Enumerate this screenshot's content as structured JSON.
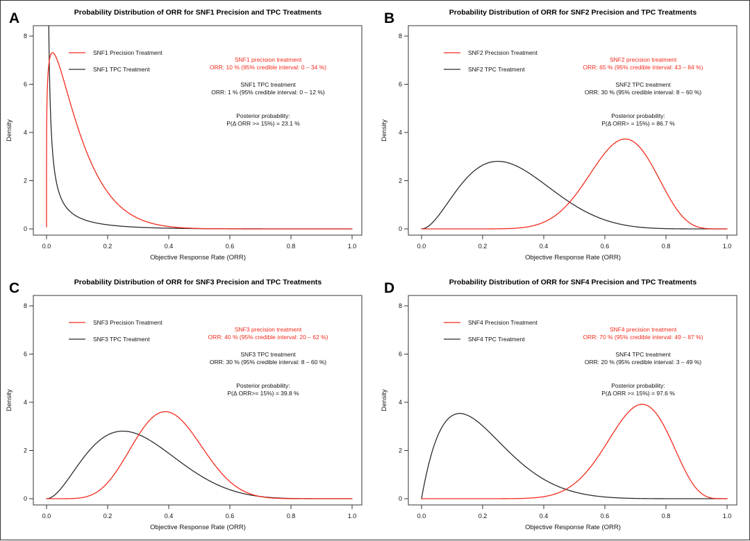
{
  "figure": {
    "background": "#ffffff",
    "border_color": "#333333",
    "description": "2x2 grid of posterior density plots comparing Precision vs TPC treatment ORR for subgroups SNF1-SNF4"
  },
  "colors": {
    "precision": "#f42a1d",
    "tpc": "#2b2b2b",
    "axis": "#333333",
    "text": "#111111"
  },
  "axes": {
    "x_label": "Objective Response Rate (ORR)",
    "y_label": "Density",
    "x_ticks": [
      "0.0",
      "0.2",
      "0.4",
      "0.6",
      "0.8",
      "1.0"
    ],
    "x_tick_values": [
      0,
      0.2,
      0.4,
      0.6,
      0.8,
      1.0
    ],
    "y_ticks": [
      "0",
      "2",
      "4",
      "6",
      "8"
    ],
    "y_tick_values": [
      0,
      2,
      4,
      6,
      8
    ],
    "x_range": [
      0,
      1
    ],
    "y_range": [
      0,
      8.4
    ],
    "grid": false
  },
  "chart_data": [
    {
      "type": "line",
      "panel_label": "A",
      "title": "Probability Distribution of ORR for SNF1 Precision and TPC Treatments",
      "legend_position": "top-left-inside",
      "legend": [
        {
          "label": "SNF1 Precision Treatment",
          "color": "#f42a1d"
        },
        {
          "label": "SNF1 TPC Treatment",
          "color": "#2b2b2b"
        }
      ],
      "series": [
        {
          "name": "SNF1 Precision Treatment",
          "color": "#f42a1d",
          "orr_pct": 10,
          "ci95_pct": [
            0,
            34
          ],
          "peak": {
            "x": 0.02,
            "y": 7.65
          },
          "beta_fit": {
            "alpha": 1.2,
            "beta": 11
          }
        },
        {
          "name": "SNF1 TPC Treatment",
          "color": "#2b2b2b",
          "orr_pct": 1,
          "ci95_pct": [
            0,
            12
          ],
          "peak": {
            "x": 0.005,
            "y": 8.4,
            "clipped_at_plot_top": true
          },
          "beta_fit": {
            "alpha": 0.08,
            "beta": 5
          }
        }
      ],
      "annotations": {
        "precision": [
          "SNF1 precision treatment",
          "ORR: 10 % (95% credible interval: 0 – 34 %)"
        ],
        "tpc": [
          "SNF1 TPC treatment",
          "ORR: 1 % (95% credible interval: 0 – 12 %)"
        ],
        "posterior": [
          "Posterior probability:",
          "P(Δ ORR >= 15%) =  23.1 %"
        ],
        "posterior_probability_pct": 23.1
      }
    },
    {
      "type": "line",
      "panel_label": "B",
      "title": "Probability Distribution of ORR for SNF2 Precision and TPC Treatments",
      "legend_position": "top-left-inside",
      "legend": [
        {
          "label": "SNF2 Precision Treatment",
          "color": "#f42a1d"
        },
        {
          "label": "SNF2 TPC Treatment",
          "color": "#2b2b2b"
        }
      ],
      "series": [
        {
          "name": "SNF2 Precision Treatment",
          "color": "#f42a1d",
          "orr_pct": 65,
          "ci95_pct": [
            43,
            84
          ],
          "peak": {
            "x": 0.67,
            "y": 3.75
          },
          "beta_fit": {
            "alpha": 13,
            "beta": 7
          }
        },
        {
          "name": "SNF2 TPC Treatment",
          "color": "#2b2b2b",
          "orr_pct": 30,
          "ci95_pct": [
            8,
            60
          ],
          "peak": {
            "x": 0.25,
            "y": 2.8
          },
          "beta_fit": {
            "alpha": 3,
            "beta": 7
          }
        }
      ],
      "annotations": {
        "precision": [
          "SNF2 precision treatment",
          "ORR: 65 % (95% credible interval: 43 – 84 %)"
        ],
        "tpc": [
          "SNF2 TPC treatment",
          "ORR: 30 % (95% credible interval: 8 – 60 %)"
        ],
        "posterior": [
          "Posterior probability:",
          "P(Δ ORR> = 15%) =  86.7 %"
        ],
        "posterior_probability_pct": 86.7
      }
    },
    {
      "type": "line",
      "panel_label": "C",
      "title": "Probability Distribution of ORR for SNF3 Precision and TPC Treatments",
      "legend_position": "top-left-inside",
      "legend": [
        {
          "label": "SNF3 Precision Treatment",
          "color": "#f42a1d"
        },
        {
          "label": "SNF3 TPC Treatment",
          "color": "#2b2b2b"
        }
      ],
      "series": [
        {
          "name": "SNF3 Precision Treatment",
          "color": "#f42a1d",
          "orr_pct": 40,
          "ci95_pct": [
            20,
            62
          ],
          "peak": {
            "x": 0.39,
            "y": 3.6
          },
          "beta_fit": {
            "alpha": 8,
            "beta": 12
          }
        },
        {
          "name": "SNF3 TPC Treatment",
          "color": "#2b2b2b",
          "orr_pct": 30,
          "ci95_pct": [
            8,
            60
          ],
          "peak": {
            "x": 0.25,
            "y": 2.8
          },
          "beta_fit": {
            "alpha": 3,
            "beta": 7
          }
        }
      ],
      "annotations": {
        "precision": [
          "SNF3 precision treatment",
          "ORR: 40 % (95% credible interval: 20 – 62 %)"
        ],
        "tpc": [
          "SNF3 TPC treatment",
          "ORR: 30 % (95% credible interval: 8 – 60 %)"
        ],
        "posterior": [
          "Posterior probability:",
          "P(Δ ORR>= 15%) =  39.8 %"
        ],
        "posterior_probability_pct": 39.8
      }
    },
    {
      "type": "line",
      "panel_label": "D",
      "title": "Probability Distribution of ORR for SNF4 Precision and TPC Treatments",
      "legend_position": "top-left-inside",
      "legend": [
        {
          "label": "SNF4 Precision Treatment",
          "color": "#f42a1d"
        },
        {
          "label": "SNF4 TPC Treatment",
          "color": "#2b2b2b"
        }
      ],
      "series": [
        {
          "name": "SNF4 Precision Treatment",
          "color": "#f42a1d",
          "orr_pct": 70,
          "ci95_pct": [
            49,
            87
          ],
          "peak": {
            "x": 0.72,
            "y": 3.9
          },
          "beta_fit": {
            "alpha": 14,
            "beta": 6
          }
        },
        {
          "name": "SNF4 TPC Treatment",
          "color": "#2b2b2b",
          "orr_pct": 20,
          "ci95_pct": [
            3,
            49
          ],
          "peak": {
            "x": 0.13,
            "y": 3.5
          },
          "beta_fit": {
            "alpha": 2,
            "beta": 8
          }
        }
      ],
      "annotations": {
        "precision": [
          "SNF4 precision treatment",
          "ORR: 70 % (95% credible interval: 49 – 87 %)"
        ],
        "tpc": [
          "SNF4 TPC treatment",
          "ORR: 20 % (95% credible interval: 3 – 49 %)"
        ],
        "posterior": [
          "Posterior probability:",
          "P(Δ ORR >= 15%) =  97.6 %"
        ],
        "posterior_probability_pct": 97.6
      }
    }
  ]
}
